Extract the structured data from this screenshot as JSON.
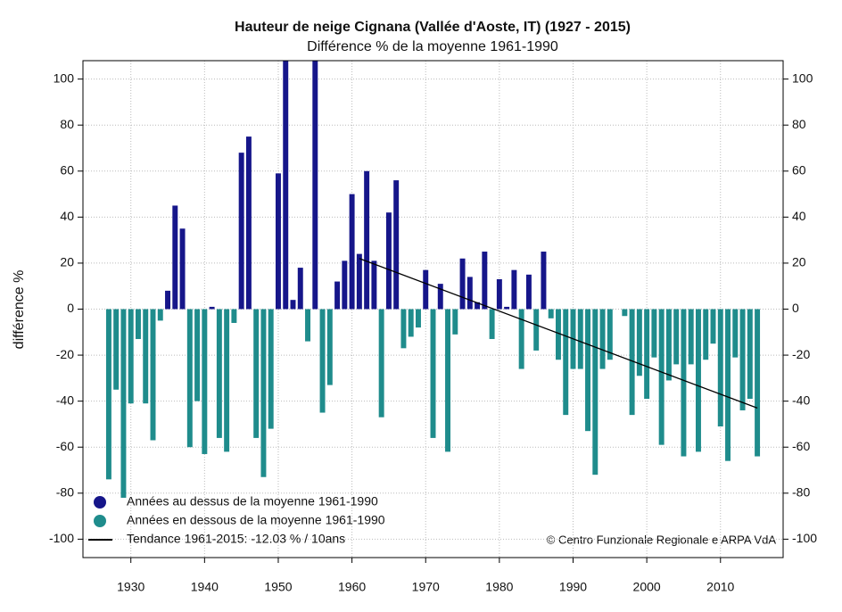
{
  "chart_data": {
    "type": "bar",
    "title": "Hauteur de neige Cignana (Vallée d'Aoste, IT) (1927 - 2015)",
    "subtitle": "Différence % de la moyenne 1961-1990",
    "y_label": "différence %",
    "annotation": "© Centro Funzionale Regionale e ARPA VdA",
    "x": [
      1927,
      1928,
      1929,
      1930,
      1931,
      1932,
      1933,
      1934,
      1935,
      1936,
      1937,
      1938,
      1939,
      1940,
      1941,
      1942,
      1943,
      1944,
      1945,
      1946,
      1947,
      1948,
      1949,
      1950,
      1951,
      1952,
      1953,
      1954,
      1955,
      1956,
      1957,
      1958,
      1959,
      1960,
      1961,
      1962,
      1963,
      1964,
      1965,
      1966,
      1967,
      1968,
      1969,
      1970,
      1971,
      1972,
      1973,
      1974,
      1975,
      1976,
      1977,
      1978,
      1979,
      1980,
      1981,
      1982,
      1983,
      1984,
      1985,
      1986,
      1987,
      1988,
      1989,
      1990,
      1991,
      1992,
      1993,
      1994,
      1995,
      1996,
      1997,
      1998,
      1999,
      2000,
      2001,
      2002,
      2003,
      2004,
      2005,
      2006,
      2007,
      2008,
      2009,
      2010,
      2011,
      2012,
      2013,
      2014,
      2015
    ],
    "values": [
      -74,
      -35,
      -82,
      -41,
      -13,
      -41,
      -57,
      -5,
      8,
      45,
      35,
      -60,
      -40,
      -63,
      1,
      -56,
      -62,
      -6,
      68,
      75,
      -56,
      -73,
      -52,
      59,
      110,
      4,
      18,
      -14,
      110,
      -45,
      -33,
      12,
      21,
      50,
      24,
      60,
      21,
      -47,
      42,
      56,
      -17,
      -12,
      -8,
      17,
      -56,
      11,
      -62,
      -11,
      22,
      14,
      3,
      25,
      -13,
      13,
      1,
      17,
      -26,
      15,
      -18,
      25,
      -4,
      -22,
      -46,
      -26,
      -26,
      -53,
      -72,
      -26,
      -22,
      0,
      -3,
      -46,
      -29,
      -39,
      -21,
      -59,
      -31,
      -24,
      -64,
      -24,
      -62,
      -22,
      -15,
      -51,
      -66,
      -21,
      -44,
      -39,
      -64
    ],
    "legend": [
      {
        "label": "Années au dessus de la moyenne 1961-1990",
        "color": "#16168a"
      },
      {
        "label": "Années en dessous de la moyenne 1961-1990",
        "color": "#1f8c8c"
      },
      {
        "label": "Tendance 1961-2015: -12.03 % / 10ans",
        "color": "#000000"
      }
    ],
    "trend": {
      "x": [
        1961,
        2015
      ],
      "values": [
        22,
        -43
      ]
    },
    "xlim": [
      1923.5,
      2018.5
    ],
    "xticks": [
      1930,
      1940,
      1950,
      1960,
      1970,
      1980,
      1990,
      2000,
      2010
    ],
    "ylim": [
      -108,
      108
    ],
    "yticks": [
      -100,
      -80,
      -60,
      -40,
      -20,
      0,
      20,
      40,
      60,
      80,
      100
    ],
    "grid": true,
    "legend_position": "lower left"
  }
}
